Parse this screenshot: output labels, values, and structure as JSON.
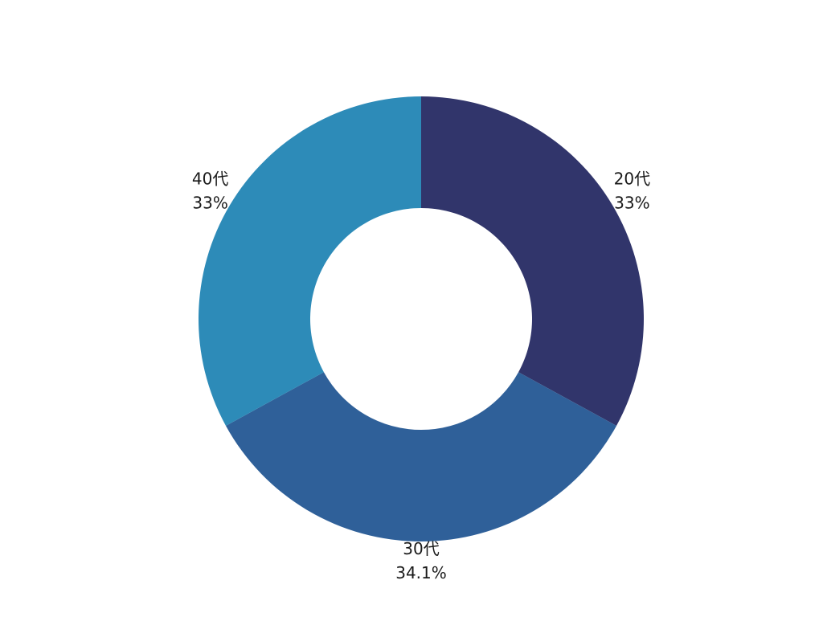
{
  "chart_data": {
    "type": "pie",
    "variant": "donut",
    "title": "",
    "slices": [
      {
        "name": "20代",
        "value": 33,
        "label": "33%",
        "color": "#31356b"
      },
      {
        "name": "30代",
        "value": 34.1,
        "label": "34.1%",
        "color": "#2f6099"
      },
      {
        "name": "40代",
        "value": 33,
        "label": "33%",
        "color": "#2d8bb8"
      }
    ]
  }
}
